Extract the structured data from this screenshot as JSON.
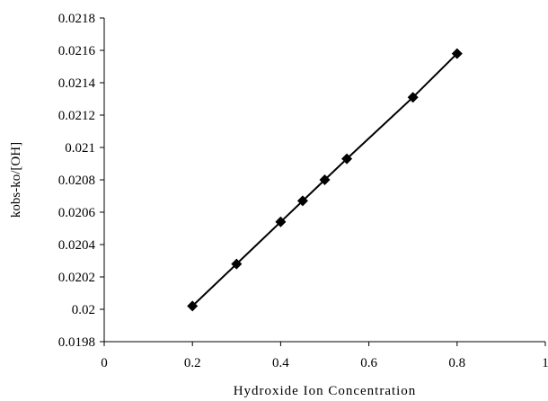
{
  "chart_data": {
    "type": "line",
    "title": "",
    "xlabel": "Hydroxide Ion Concentration",
    "ylabel": "kobs-ko/[OH]",
    "xlim": [
      0,
      1
    ],
    "ylim": [
      0.0198,
      0.0218
    ],
    "x_ticks": [
      0,
      0.2,
      0.4,
      0.6,
      0.8,
      1
    ],
    "x_tick_labels": [
      "0",
      "0.2",
      "0.4",
      "0.6",
      "0.8",
      "1"
    ],
    "y_ticks": [
      0.0198,
      0.02,
      0.0202,
      0.0204,
      0.0206,
      0.0208,
      0.021,
      0.0212,
      0.0214,
      0.0216,
      0.0218
    ],
    "y_tick_labels": [
      "0.0198",
      "0.02",
      "0.0202",
      "0.0204",
      "0.0206",
      "0.0208",
      "0.021",
      "0.0212",
      "0.0214",
      "0.0216",
      "0.0218"
    ],
    "grid": false,
    "legend": "none",
    "marker": "diamond",
    "series": [
      {
        "x": [
          0.2,
          0.3,
          0.4,
          0.45,
          0.5,
          0.55,
          0.7,
          0.8
        ],
        "values": [
          0.02002,
          0.02028,
          0.02054,
          0.02067,
          0.0208,
          0.02093,
          0.02131,
          0.02158
        ]
      }
    ],
    "colors": {
      "line": "#000000",
      "marker": "#000000",
      "axis": "#000000"
    }
  }
}
